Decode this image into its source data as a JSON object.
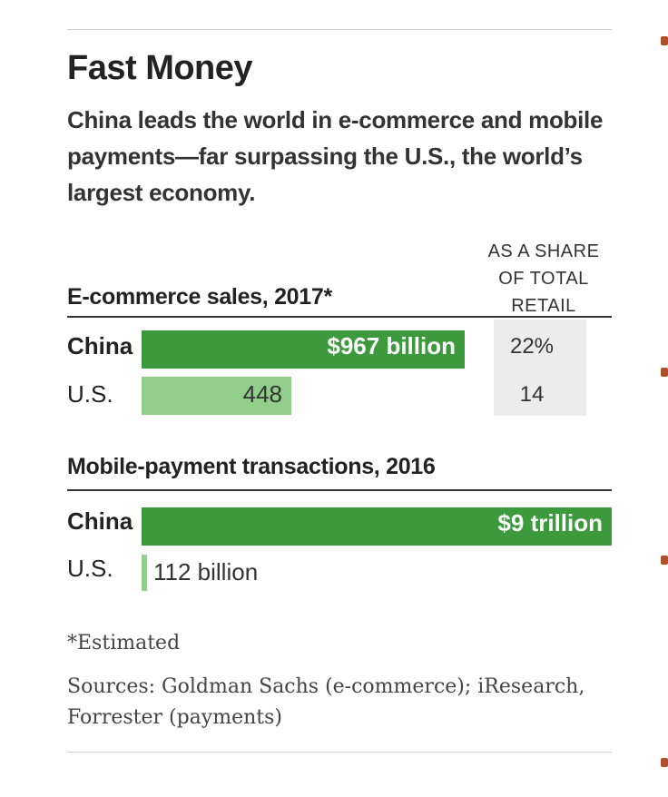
{
  "title": "Fast Money",
  "subtitle": "China leads the world in e-commerce and mobile payments—far surpassing the U.S., the world’s largest economy.",
  "share_header": [
    "AS A SHARE",
    "OF TOTAL",
    "RETAIL"
  ],
  "footnote": "*Estimated",
  "sources": "Sources: Goldman Sachs (e-commerce); iResearch, Forrester (payments)",
  "colors": {
    "china": "#3c9a3c",
    "us": "#90ce8a"
  },
  "chart_data": [
    {
      "type": "bar",
      "orientation": "horizontal",
      "title": "E-commerce sales, 2017*",
      "unit": "billion USD",
      "categories": [
        "China",
        "U.S."
      ],
      "values": [
        967,
        448
      ],
      "data_labels": [
        "$967 billion",
        "448"
      ],
      "share_of_total_retail_pct": [
        22,
        14
      ],
      "share_labels": [
        "22%",
        "14"
      ]
    },
    {
      "type": "bar",
      "orientation": "horizontal",
      "title": "Mobile-payment transactions, 2016",
      "unit": "billion USD",
      "categories": [
        "China",
        "U.S."
      ],
      "values": [
        9000,
        112
      ],
      "data_labels": [
        "$9 trillion",
        "112 billion"
      ]
    }
  ]
}
